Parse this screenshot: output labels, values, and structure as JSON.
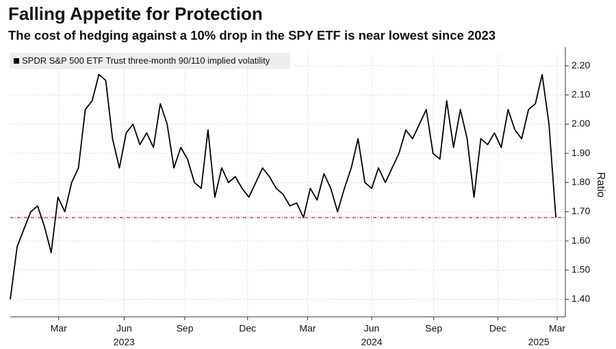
{
  "chart_data": {
    "type": "line",
    "title": "Falling Appetite for Protection",
    "subtitle": "The cost of hedging against a 10% drop in the SPY ETF is near lowest since 2023",
    "y_axis_label": "Ratio",
    "series": [
      {
        "name": "SPDR S&P 500 ETF Trust three-month 90/110 implied volatility",
        "color": "#000000",
        "values": [
          1.4,
          1.58,
          1.64,
          1.7,
          1.72,
          1.65,
          1.56,
          1.75,
          1.7,
          1.8,
          1.85,
          2.05,
          2.08,
          2.17,
          2.15,
          1.95,
          1.85,
          1.97,
          2.0,
          1.93,
          1.97,
          1.92,
          2.07,
          2.0,
          1.85,
          1.92,
          1.88,
          1.8,
          1.78,
          1.98,
          1.75,
          1.85,
          1.8,
          1.82,
          1.78,
          1.75,
          1.8,
          1.85,
          1.82,
          1.78,
          1.76,
          1.72,
          1.73,
          1.68,
          1.78,
          1.74,
          1.83,
          1.78,
          1.7,
          1.78,
          1.85,
          1.95,
          1.8,
          1.78,
          1.85,
          1.8,
          1.85,
          1.9,
          1.98,
          1.95,
          2.0,
          2.05,
          1.9,
          1.88,
          2.08,
          1.92,
          2.05,
          1.95,
          1.75,
          1.95,
          1.93,
          1.97,
          1.92,
          2.05,
          1.98,
          1.95,
          2.05,
          2.07,
          2.17,
          2.0,
          1.68
        ]
      }
    ],
    "xlim": [
      0,
      81.4
    ],
    "xticks": [
      {
        "value": 7.1,
        "label": "Mar"
      },
      {
        "value": 16.7,
        "label": "Jun"
      },
      {
        "value": 25.6,
        "label": "Sep"
      },
      {
        "value": 34.8,
        "label": "Dec"
      },
      {
        "value": 43.6,
        "label": "Mar"
      },
      {
        "value": 53.0,
        "label": "Jun"
      },
      {
        "value": 62.1,
        "label": "Sep"
      },
      {
        "value": 71.5,
        "label": "Dec"
      },
      {
        "value": 80.2,
        "label": "Mar"
      }
    ],
    "year_labels": [
      {
        "value": 16.7,
        "label": "2023"
      },
      {
        "value": 53.0,
        "label": "2024"
      },
      {
        "value": 77.5,
        "label": "2025"
      }
    ],
    "ylim": [
      1.34,
      2.24
    ],
    "yticks": [
      {
        "value": 1.4,
        "label": "1.40"
      },
      {
        "value": 1.5,
        "label": "1.50"
      },
      {
        "value": 1.6,
        "label": "1.60"
      },
      {
        "value": 1.7,
        "label": "1.70"
      },
      {
        "value": 1.8,
        "label": "1.80"
      },
      {
        "value": 1.9,
        "label": "1.90"
      },
      {
        "value": 2.0,
        "label": "2.00"
      },
      {
        "value": 2.1,
        "label": "2.10"
      },
      {
        "value": 2.2,
        "label": "2.20"
      }
    ],
    "reference_line": {
      "value": 1.68,
      "color": "#c0392b"
    },
    "grid": true
  }
}
